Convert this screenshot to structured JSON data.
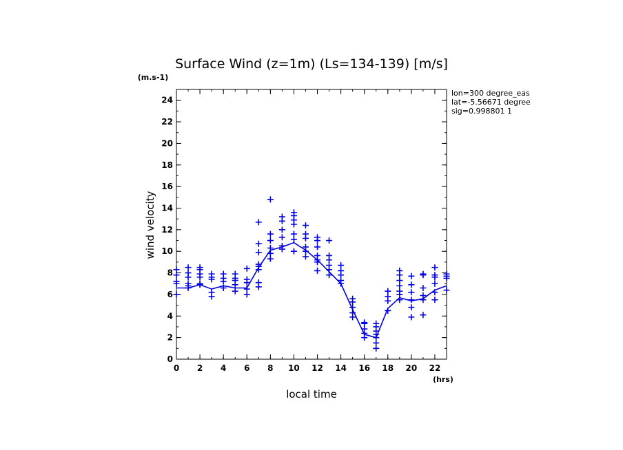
{
  "chart_data": {
    "type": "scatter",
    "title": "Surface Wind (z=1m) (Ls=134-139) [m/s]",
    "ylabel": "wind velocity",
    "yunit": "(m.s-1)",
    "xlabel": "local time",
    "xunit": "(hrs)",
    "xlim": [
      0,
      23
    ],
    "ylim": [
      0,
      25
    ],
    "xticks": [
      0,
      2,
      4,
      6,
      8,
      10,
      12,
      14,
      16,
      18,
      20,
      22
    ],
    "yticks": [
      0,
      2,
      4,
      6,
      8,
      10,
      12,
      14,
      16,
      18,
      20,
      22,
      24
    ],
    "info": [
      "lon=300 degree_eas",
      "lat=-5.56671 degree",
      "sig=0.998801 1"
    ],
    "series": [
      {
        "kind": "line",
        "x": [
          0,
          1,
          2,
          3,
          4,
          5,
          6,
          7,
          8,
          9,
          10,
          11,
          12,
          13,
          14,
          15,
          16,
          17,
          18,
          19,
          20,
          21,
          22,
          23
        ],
        "y": [
          6.6,
          6.6,
          6.9,
          6.5,
          6.8,
          6.6,
          6.6,
          8.5,
          10.1,
          10.4,
          10.8,
          10.1,
          9.2,
          8.1,
          7.0,
          4.6,
          2.3,
          2.0,
          4.7,
          5.7,
          5.4,
          5.6,
          6.4,
          6.8
        ]
      },
      {
        "kind": "scatter",
        "points": [
          [
            0,
            6.0
          ],
          [
            0,
            7.0
          ],
          [
            0,
            7.2
          ],
          [
            0,
            7.8
          ],
          [
            0,
            8.3
          ],
          [
            1,
            6.6
          ],
          [
            1,
            6.8
          ],
          [
            1,
            7.0
          ],
          [
            1,
            7.6
          ],
          [
            1,
            8.0
          ],
          [
            1,
            8.5
          ],
          [
            2,
            6.9
          ],
          [
            2,
            7.0
          ],
          [
            2,
            7.6
          ],
          [
            2,
            7.9
          ],
          [
            2,
            8.3
          ],
          [
            2,
            8.5
          ],
          [
            3,
            5.8
          ],
          [
            3,
            6.2
          ],
          [
            3,
            7.4
          ],
          [
            3,
            7.6
          ],
          [
            3,
            7.9
          ],
          [
            4,
            6.6
          ],
          [
            4,
            7.2
          ],
          [
            4,
            7.5
          ],
          [
            4,
            7.9
          ],
          [
            5,
            6.3
          ],
          [
            5,
            6.9
          ],
          [
            5,
            7.3
          ],
          [
            5,
            7.5
          ],
          [
            5,
            7.9
          ],
          [
            6,
            6.0
          ],
          [
            6,
            6.5
          ],
          [
            6,
            7.1
          ],
          [
            6,
            7.4
          ],
          [
            6,
            8.4
          ],
          [
            7,
            6.7
          ],
          [
            7,
            7.1
          ],
          [
            7,
            8.3
          ],
          [
            7,
            8.6
          ],
          [
            7,
            8.8
          ],
          [
            7,
            9.9
          ],
          [
            7,
            10.7
          ],
          [
            7,
            12.7
          ],
          [
            8,
            9.3
          ],
          [
            8,
            9.8
          ],
          [
            8,
            10.3
          ],
          [
            8,
            11.0
          ],
          [
            8,
            11.6
          ],
          [
            8,
            14.8
          ],
          [
            9,
            10.2
          ],
          [
            9,
            10.5
          ],
          [
            9,
            11.3
          ],
          [
            9,
            12.0
          ],
          [
            9,
            12.8
          ],
          [
            9,
            13.2
          ],
          [
            10,
            10.0
          ],
          [
            10,
            11.1
          ],
          [
            10,
            11.6
          ],
          [
            10,
            12.5
          ],
          [
            10,
            12.9
          ],
          [
            10,
            13.3
          ],
          [
            10,
            13.6
          ],
          [
            11,
            9.5
          ],
          [
            11,
            10.0
          ],
          [
            11,
            10.4
          ],
          [
            11,
            11.2
          ],
          [
            11,
            11.6
          ],
          [
            11,
            12.4
          ],
          [
            12,
            8.2
          ],
          [
            12,
            9.0
          ],
          [
            12,
            9.2
          ],
          [
            12,
            9.6
          ],
          [
            12,
            10.4
          ],
          [
            12,
            11.0
          ],
          [
            12,
            11.3
          ],
          [
            13,
            7.8
          ],
          [
            13,
            8.3
          ],
          [
            13,
            8.7
          ],
          [
            13,
            9.2
          ],
          [
            13,
            9.6
          ],
          [
            13,
            11.0
          ],
          [
            14,
            7.0
          ],
          [
            14,
            7.3
          ],
          [
            14,
            7.8
          ],
          [
            14,
            8.2
          ],
          [
            14,
            8.7
          ],
          [
            15,
            3.9
          ],
          [
            15,
            4.3
          ],
          [
            15,
            4.8
          ],
          [
            15,
            5.3
          ],
          [
            15,
            5.6
          ],
          [
            16,
            2.0
          ],
          [
            16,
            2.4
          ],
          [
            16,
            2.8
          ],
          [
            16,
            3.3
          ],
          [
            16,
            3.4
          ],
          [
            17,
            1.0
          ],
          [
            17,
            1.5
          ],
          [
            17,
            2.0
          ],
          [
            17,
            2.3
          ],
          [
            17,
            2.6
          ],
          [
            17,
            3.0
          ],
          [
            17,
            3.3
          ],
          [
            18,
            4.5
          ],
          [
            18,
            5.4
          ],
          [
            18,
            5.8
          ],
          [
            18,
            6.3
          ],
          [
            19,
            5.5
          ],
          [
            19,
            6.0
          ],
          [
            19,
            6.3
          ],
          [
            19,
            6.8
          ],
          [
            19,
            7.3
          ],
          [
            19,
            7.8
          ],
          [
            19,
            8.2
          ],
          [
            20,
            3.9
          ],
          [
            20,
            4.8
          ],
          [
            20,
            5.5
          ],
          [
            20,
            6.2
          ],
          [
            20,
            6.9
          ],
          [
            20,
            7.7
          ],
          [
            21,
            4.1
          ],
          [
            21,
            5.5
          ],
          [
            21,
            5.9
          ],
          [
            21,
            6.6
          ],
          [
            21,
            7.8
          ],
          [
            21,
            7.9
          ],
          [
            22,
            5.5
          ],
          [
            22,
            6.2
          ],
          [
            22,
            7.0
          ],
          [
            22,
            7.6
          ],
          [
            22,
            7.8
          ],
          [
            22,
            8.5
          ],
          [
            23,
            6.4
          ],
          [
            23,
            7.5
          ],
          [
            23,
            7.7
          ],
          [
            23,
            7.9
          ]
        ]
      }
    ],
    "color": "#0000e0"
  }
}
